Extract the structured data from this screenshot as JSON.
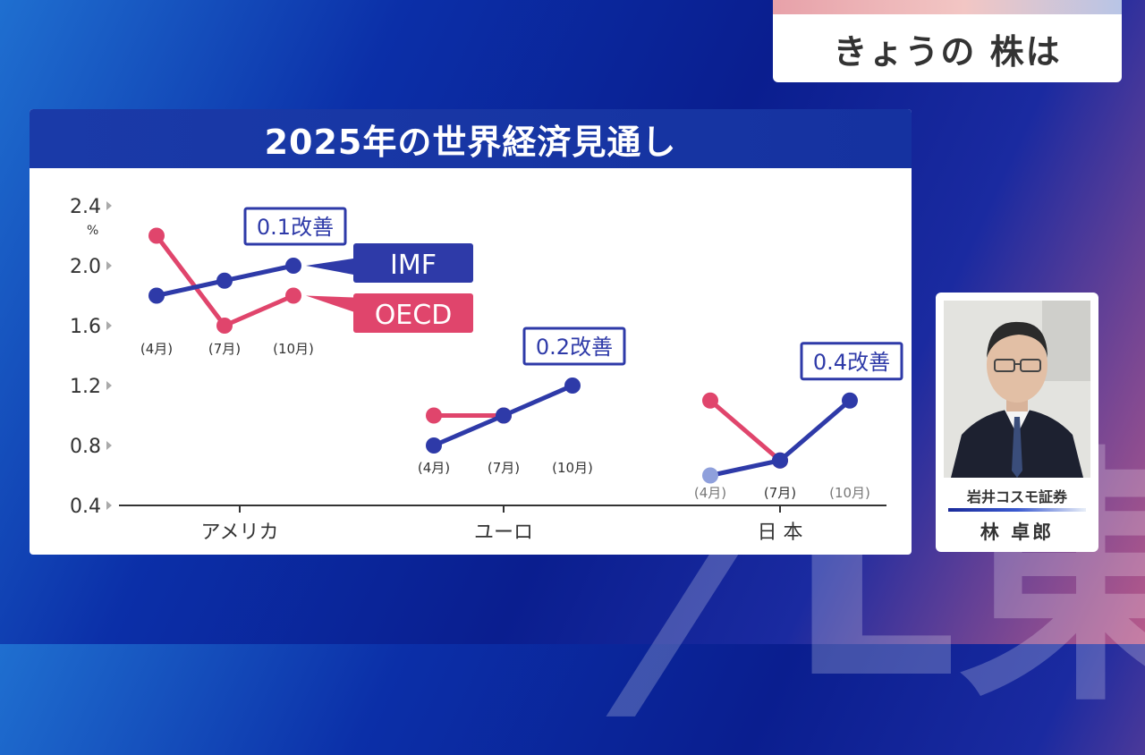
{
  "topic": {
    "title": "きょうの 株は"
  },
  "chart_data": {
    "type": "line",
    "title": "2025年の世界経済見通し",
    "ylabel": "%",
    "ylim": [
      0.4,
      2.4
    ],
    "yticks": [
      "2.4",
      "2.0",
      "1.6",
      "1.2",
      "0.8",
      "0.4"
    ],
    "groups": [
      {
        "name": "アメリカ",
        "months": [
          "(4月)",
          "(7月)",
          "(10月)"
        ],
        "IMF": [
          1.8,
          1.9,
          2.0
        ],
        "OECD": [
          2.2,
          1.6,
          1.8
        ],
        "annotation": "0.1改善"
      },
      {
        "name": "ユーロ",
        "months": [
          "(4月)",
          "(7月)",
          "(10月)"
        ],
        "IMF": [
          0.8,
          1.0,
          1.2
        ],
        "OECD": [
          1.0,
          1.0
        ],
        "annotation": "0.2改善"
      },
      {
        "name": "日 本",
        "months": [
          "(4月)",
          "(7月)",
          "(10月)"
        ],
        "IMF": [
          0.6,
          0.7,
          1.1
        ],
        "OECD": [
          1.1,
          0.7
        ],
        "annotation": "0.4改善"
      }
    ],
    "legend": [
      {
        "name": "IMF",
        "color": "#2e3aa8"
      },
      {
        "name": "OECD",
        "color": "#e0456c"
      }
    ]
  },
  "presenter": {
    "company": "岩井コスモ証券",
    "name": "林 卓郎"
  }
}
